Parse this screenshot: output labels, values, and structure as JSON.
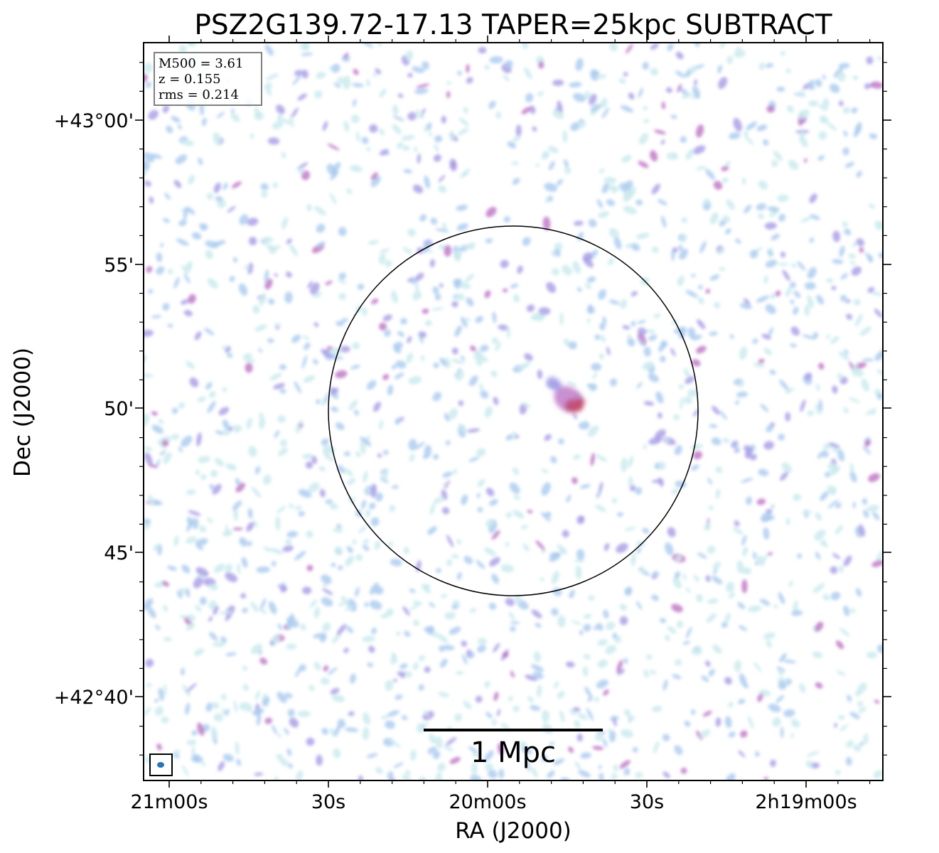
{
  "chart_data": {
    "type": "heatmap",
    "title": "PSZ2G139.72-17.13 TAPER=25kpc SUBTRACT",
    "xlabel": "RA (J2000)",
    "ylabel": "Dec (J2000)",
    "x_ticks": [
      "21m00s",
      "30s",
      "20m00s",
      "30s",
      "2h19m00s"
    ],
    "y_ticks": [
      "+43°00'",
      "55'",
      "50'",
      "45'",
      "+42°40'"
    ],
    "info_box": {
      "m500": "M500 = 3.61",
      "z": "z = 0.155",
      "rms": "rms = 0.214"
    },
    "scale_bar_label": "1 Mpc",
    "grid": false,
    "colormap": [
      "#cdebee",
      "#a9cbef",
      "#a79be6",
      "#b868c0",
      "#c24868"
    ],
    "circle_color": "#000000",
    "beam_color": "#2b75b4"
  }
}
